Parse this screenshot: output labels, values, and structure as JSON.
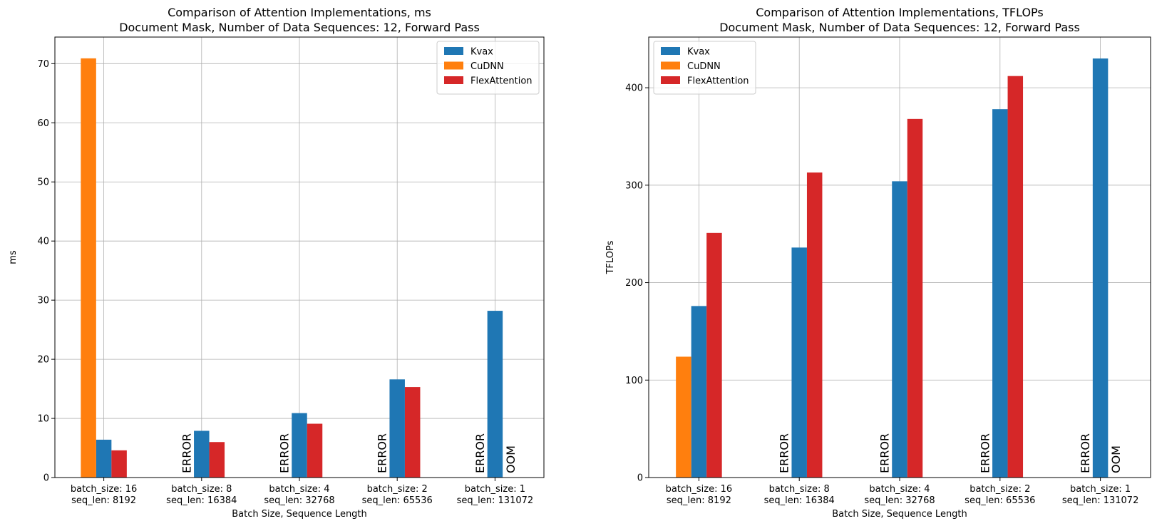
{
  "colors": {
    "Kvax": "#1f77b4",
    "CuDNN": "#ff7f0e",
    "FlexAttention": "#d62728"
  },
  "chart_data": [
    {
      "type": "bar",
      "title_line1": "Comparison of Attention Implementations, ms",
      "title_line2": "Document Mask, Number of Data Sequences: 12, Forward Pass",
      "xlabel": "Batch Size, Sequence Length",
      "ylabel": "ms",
      "ylim": [
        0,
        74.5
      ],
      "yticks": [
        0,
        10,
        20,
        30,
        40,
        50,
        60,
        70
      ],
      "grid": true,
      "legend_position": "top-right",
      "categories": [
        [
          "batch_size: 16",
          "seq_len: 8192"
        ],
        [
          "batch_size: 8",
          "seq_len: 16384"
        ],
        [
          "batch_size: 4",
          "seq_len: 32768"
        ],
        [
          "batch_size: 2",
          "seq_len: 65536"
        ],
        [
          "batch_size: 1",
          "seq_len: 131072"
        ]
      ],
      "series": [
        {
          "name": "Kvax",
          "values": [
            6.4,
            7.9,
            10.9,
            16.6,
            28.2
          ]
        },
        {
          "name": "CuDNN",
          "values": [
            70.9,
            null,
            null,
            null,
            null
          ]
        },
        {
          "name": "FlexAttention",
          "values": [
            4.6,
            6.0,
            9.1,
            15.3,
            null
          ]
        }
      ],
      "annotations": [
        {
          "category": 1,
          "series": "CuDNN",
          "text": "ERROR"
        },
        {
          "category": 2,
          "series": "CuDNN",
          "text": "ERROR"
        },
        {
          "category": 3,
          "series": "CuDNN",
          "text": "ERROR"
        },
        {
          "category": 4,
          "series": "CuDNN",
          "text": "ERROR"
        },
        {
          "category": 4,
          "series": "FlexAttention",
          "text": "OOM"
        }
      ]
    },
    {
      "type": "bar",
      "title_line1": "Comparison of Attention Implementations, TFLOPs",
      "title_line2": "Document Mask, Number of Data Sequences: 12, Forward Pass",
      "xlabel": "Batch Size, Sequence Length",
      "ylabel": "TFLOPs",
      "ylim": [
        0,
        452
      ],
      "yticks": [
        0,
        100,
        200,
        300,
        400
      ],
      "grid": true,
      "legend_position": "top-left",
      "categories": [
        [
          "batch_size: 16",
          "seq_len: 8192"
        ],
        [
          "batch_size: 8",
          "seq_len: 16384"
        ],
        [
          "batch_size: 4",
          "seq_len: 32768"
        ],
        [
          "batch_size: 2",
          "seq_len: 65536"
        ],
        [
          "batch_size: 1",
          "seq_len: 131072"
        ]
      ],
      "series": [
        {
          "name": "Kvax",
          "values": [
            176,
            236,
            304,
            378,
            430
          ]
        },
        {
          "name": "CuDNN",
          "values": [
            124,
            null,
            null,
            null,
            null
          ]
        },
        {
          "name": "FlexAttention",
          "values": [
            251,
            313,
            368,
            412,
            null
          ]
        }
      ],
      "annotations": [
        {
          "category": 1,
          "series": "CuDNN",
          "text": "ERROR"
        },
        {
          "category": 2,
          "series": "CuDNN",
          "text": "ERROR"
        },
        {
          "category": 3,
          "series": "CuDNN",
          "text": "ERROR"
        },
        {
          "category": 4,
          "series": "CuDNN",
          "text": "ERROR"
        },
        {
          "category": 4,
          "series": "FlexAttention",
          "text": "OOM"
        }
      ]
    }
  ]
}
